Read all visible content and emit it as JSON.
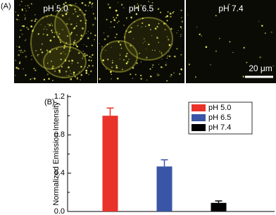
{
  "panel_a": {
    "label": "(A)",
    "images": [
      "pH 5.0",
      "pH 6.5",
      "pH 7.4"
    ],
    "scale_bar": "20 μm"
  },
  "chart_data": {
    "type": "bar",
    "panel_label": "(B)",
    "y_label": "Normalized Emission Intensity",
    "categories": [
      "pH 5.0",
      "pH 6.5",
      "pH 7.4"
    ],
    "values": [
      1.0,
      0.47,
      0.09
    ],
    "errors": [
      0.08,
      0.07,
      0.02
    ],
    "colors": [
      "#e8322a",
      "#3a55a5",
      "#000000"
    ],
    "ylim": [
      0,
      1.2
    ],
    "yticks": [
      {
        "value": 0,
        "label": "0.0"
      },
      0.4,
      0.8,
      1.2
    ],
    "yminorticks": [
      0.2,
      0.6,
      1.0
    ],
    "legend": "upper right"
  }
}
